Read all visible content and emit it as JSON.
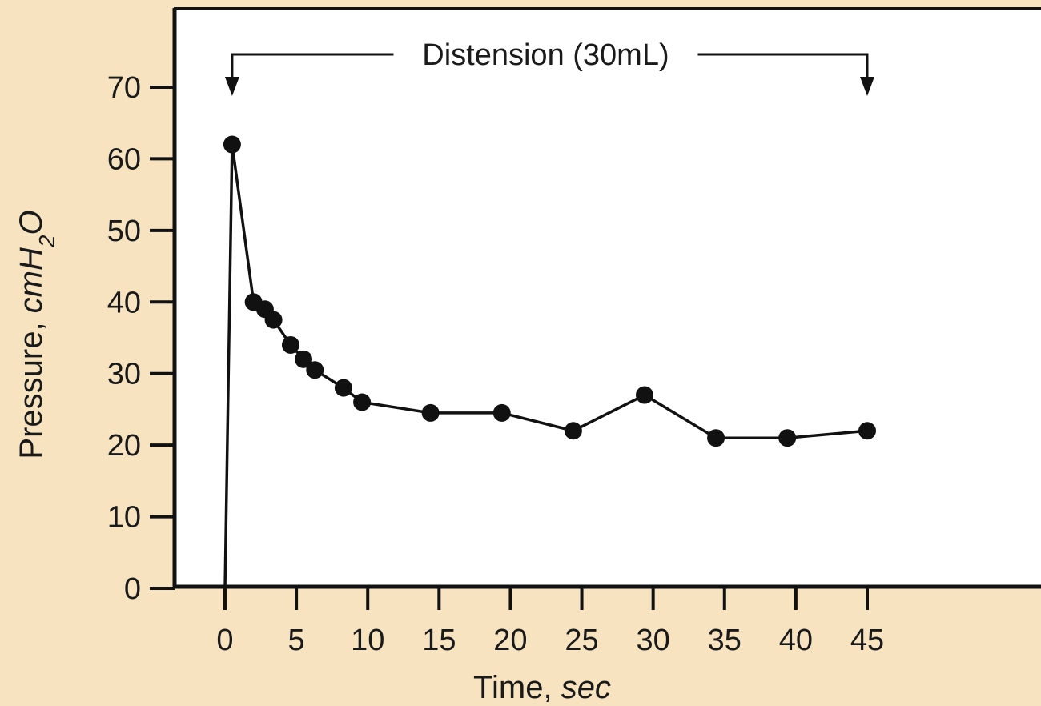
{
  "chart_data": {
    "type": "line",
    "title": "",
    "xlabel": "Time,",
    "xlabel_unit": "sec",
    "ylabel": "Pressure,",
    "ylabel_unit": "cmH",
    "ylabel_unit_sub": "2",
    "ylabel_unit_tail": "O",
    "xlim": [
      0,
      45
    ],
    "ylim": [
      0,
      70
    ],
    "x_ticks": [
      0,
      5,
      10,
      15,
      20,
      25,
      30,
      35,
      40,
      45
    ],
    "y_ticks": [
      0,
      10,
      20,
      30,
      40,
      50,
      60,
      70
    ],
    "grid": false,
    "line_start": {
      "x": 0,
      "y": 0
    },
    "series": [
      {
        "x": [
          0.5,
          2,
          2.8,
          3.4,
          4.6,
          5.5,
          6.3,
          8.3,
          9.6,
          14.4,
          19.4,
          24.4,
          29.4,
          34.4,
          39.4,
          45
        ],
        "y": [
          62,
          40,
          39,
          37.5,
          34,
          32,
          30.5,
          28,
          26,
          24.5,
          24.5,
          22,
          27,
          21,
          21,
          22
        ]
      }
    ],
    "annotation": {
      "text": "Distension (30mL)",
      "x_start": 0.5,
      "x_end": 45
    }
  },
  "colors": {
    "background": "#f7e3bf",
    "plot_area": "#ffffff",
    "line": "#111111",
    "axis": "#111111"
  }
}
